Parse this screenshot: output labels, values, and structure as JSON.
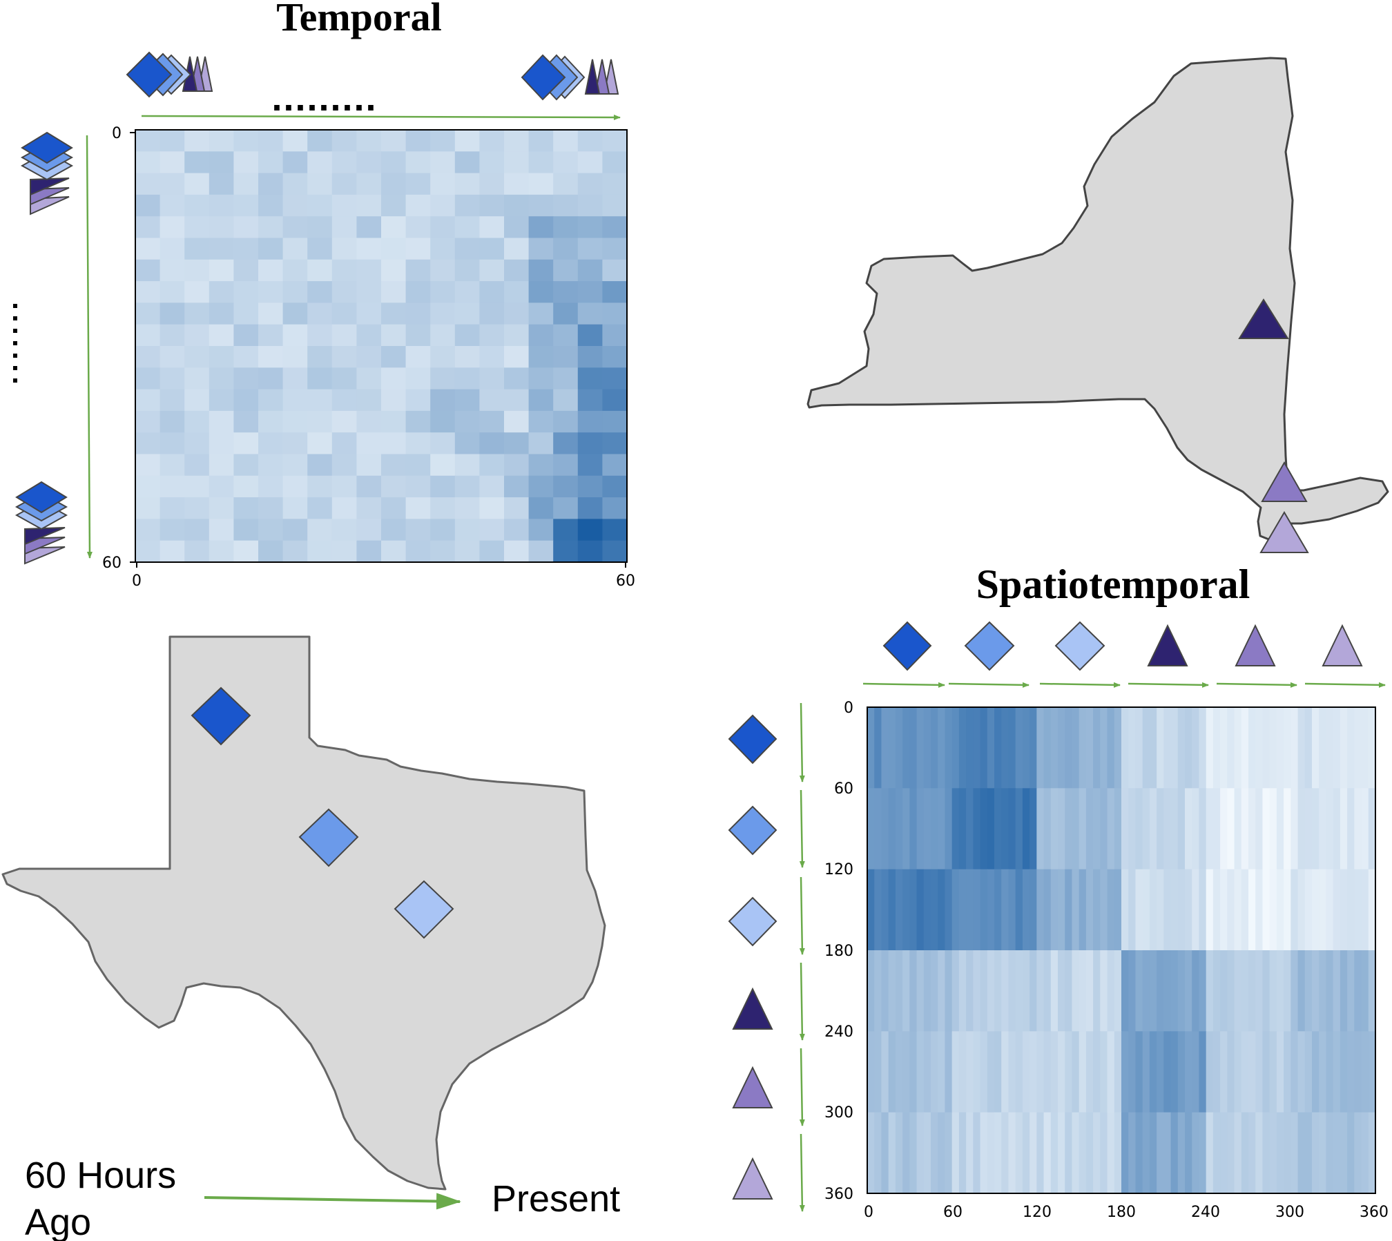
{
  "titles": {
    "temporal": "Temporal",
    "spatiotemporal": "Spatiotemporal"
  },
  "temporal_axis": {
    "ticks_x": [
      "0",
      "60"
    ],
    "ticks_y": [
      "0",
      "60"
    ],
    "ellipsis": "........."
  },
  "spatiotemporal_axis": {
    "ticks": [
      "0",
      "60",
      "120",
      "180",
      "240",
      "300",
      "360"
    ]
  },
  "legend": {
    "start_line1": "60 Hours",
    "start_line2": "Ago",
    "end": "Present"
  },
  "stations": [
    {
      "name": "texas-station-1",
      "shape": "diamond",
      "color": "#1a56cc"
    },
    {
      "name": "texas-station-2",
      "shape": "diamond",
      "color": "#6b9aea"
    },
    {
      "name": "texas-station-3",
      "shape": "diamond",
      "color": "#a9c4f5"
    },
    {
      "name": "ny-station-1",
      "shape": "triangle",
      "color": "#2e2370"
    },
    {
      "name": "ny-station-2",
      "shape": "triangle",
      "color": "#8b7ac4"
    },
    {
      "name": "ny-station-3",
      "shape": "triangle",
      "color": "#b3a7d9"
    }
  ],
  "colors": {
    "arrow": "#6aaa4a",
    "state_fill": "#d9d9d9",
    "state_stroke": "#444444",
    "heat_light": "#f2f8fd",
    "heat_dark": "#08519c"
  }
}
